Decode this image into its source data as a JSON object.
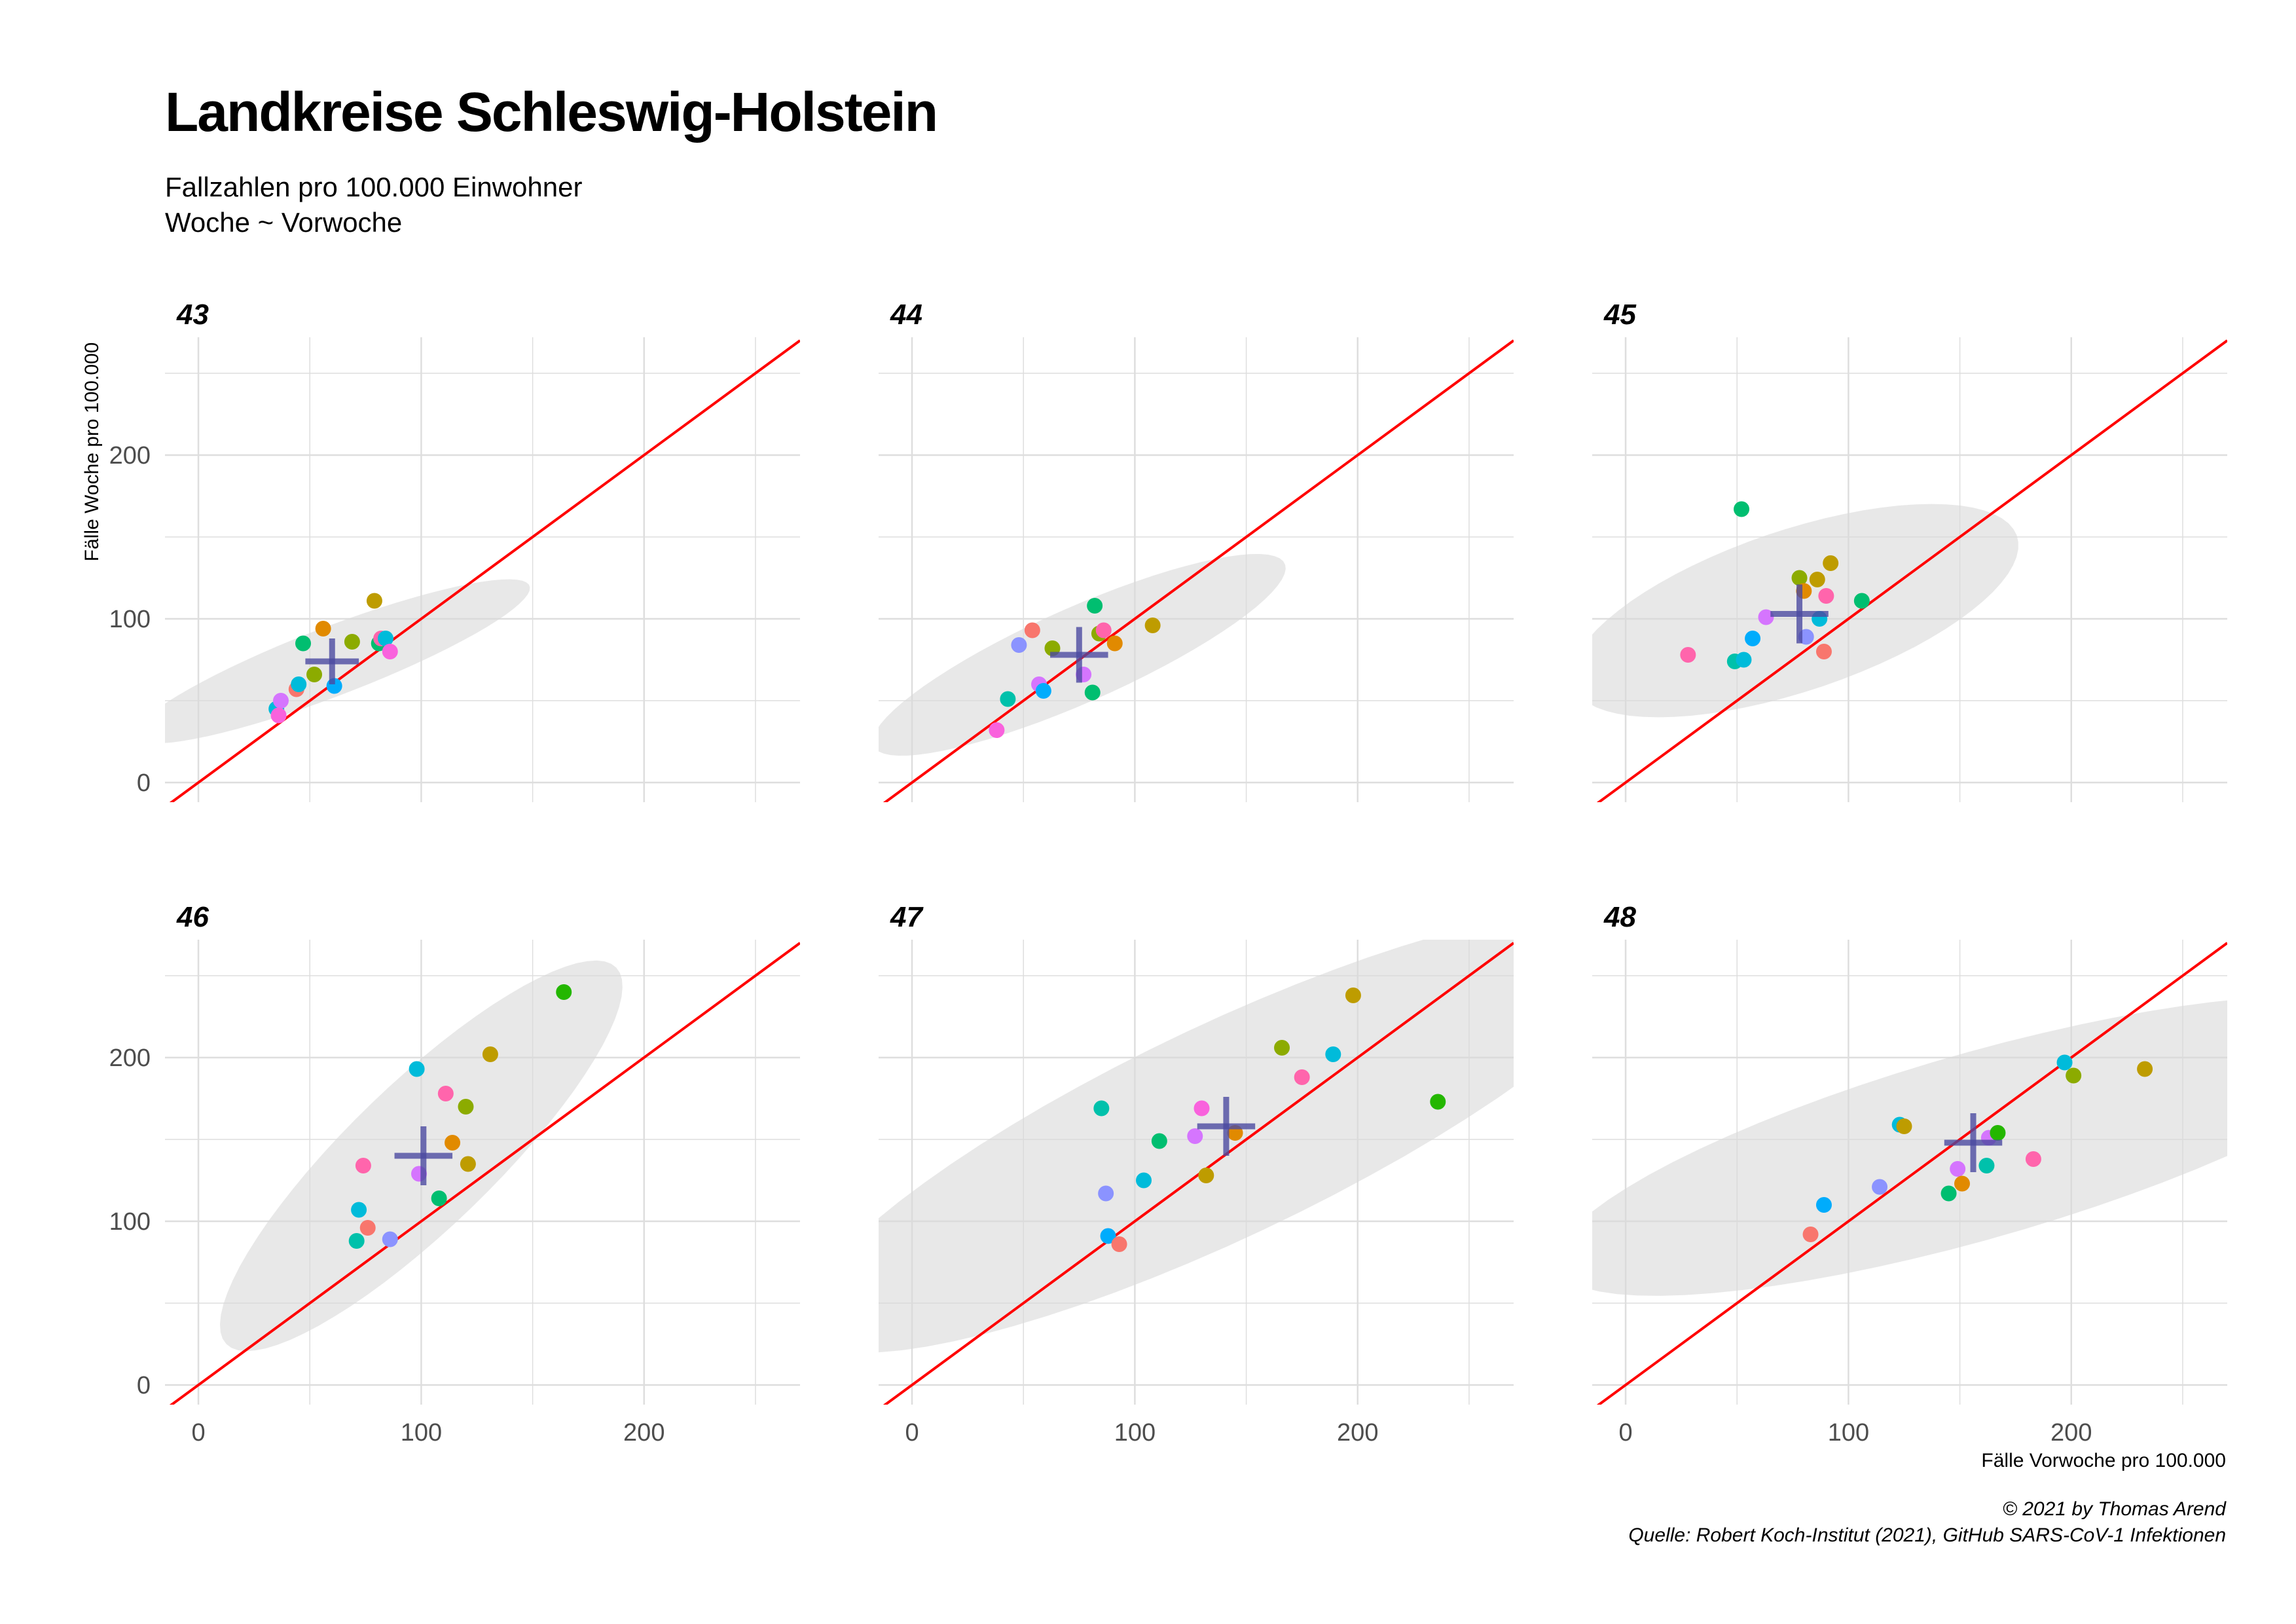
{
  "chart_data": {
    "type": "scatter",
    "title": "Landkreise Schleswig-Holstein",
    "subtitle": [
      "Fallzahlen pro 100.000 Einwohner",
      "Woche ~ Vorwoche"
    ],
    "xlabel": "Fälle Vorwoche pro 100.000",
    "ylabel": "Fälle Woche pro 100.000",
    "xlim": [
      -15,
      270
    ],
    "ylim": [
      -12,
      272
    ],
    "xticks": [
      0,
      100,
      200
    ],
    "yticks": [
      0,
      100,
      200
    ],
    "xtick_labels": [
      "0",
      "100",
      "200"
    ],
    "ytick_labels": [
      "0",
      "100",
      "200"
    ],
    "reference_line": {
      "type": "y = x",
      "color": "#ff0000"
    },
    "grid": true,
    "legend": "none",
    "caption": [
      "© 2021 by Thomas Arend",
      "Quelle: Robert Koch-Institut (2021), GitHub SARS-CoV-1 Infektionen"
    ],
    "point_colors": [
      "#F8766D",
      "#E18A00",
      "#BE9C00",
      "#8CAB00",
      "#24B700",
      "#00BE70",
      "#00C1AB",
      "#00BBDA",
      "#00ACFC",
      "#8B93FF",
      "#D575FE",
      "#F962DD",
      "#FF65AC"
    ],
    "mean_marker_color": "#4b4aa0",
    "ellipse_color": "#d9d9d9",
    "facets": [
      {
        "label": "43",
        "mean": {
          "x": 60,
          "y": 74,
          "sx": 12,
          "sy": 14
        },
        "ellipse": {
          "cx": 60,
          "cy": 74,
          "rx": 100,
          "ry": 20,
          "angle": 28
        },
        "points": [
          {
            "x": 35,
            "y": 45,
            "c": 7
          },
          {
            "x": 37,
            "y": 50,
            "c": 10
          },
          {
            "x": 36,
            "y": 41,
            "c": 11
          },
          {
            "x": 44,
            "y": 57,
            "c": 0
          },
          {
            "x": 45,
            "y": 60,
            "c": 7
          },
          {
            "x": 47,
            "y": 85,
            "c": 5
          },
          {
            "x": 52,
            "y": 66,
            "c": 3
          },
          {
            "x": 56,
            "y": 94,
            "c": 1
          },
          {
            "x": 61,
            "y": 59,
            "c": 8
          },
          {
            "x": 69,
            "y": 86,
            "c": 3
          },
          {
            "x": 79,
            "y": 111,
            "c": 2
          },
          {
            "x": 81,
            "y": 85,
            "c": 5
          },
          {
            "x": 82,
            "y": 88,
            "c": 12
          },
          {
            "x": 84,
            "y": 88,
            "c": 7
          },
          {
            "x": 86,
            "y": 80,
            "c": 11
          }
        ]
      },
      {
        "label": "44",
        "mean": {
          "x": 75,
          "y": 78,
          "sx": 13,
          "sy": 17
        },
        "ellipse": {
          "cx": 75,
          "cy": 78,
          "rx": 108,
          "ry": 27,
          "angle": 32
        },
        "points": [
          {
            "x": 38,
            "y": 32,
            "c": 11
          },
          {
            "x": 43,
            "y": 51,
            "c": 6
          },
          {
            "x": 48,
            "y": 84,
            "c": 9
          },
          {
            "x": 54,
            "y": 93,
            "c": 0
          },
          {
            "x": 57,
            "y": 60,
            "c": 10
          },
          {
            "x": 59,
            "y": 56,
            "c": 8
          },
          {
            "x": 63,
            "y": 82,
            "c": 3
          },
          {
            "x": 77,
            "y": 66,
            "c": 10
          },
          {
            "x": 81,
            "y": 55,
            "c": 5
          },
          {
            "x": 82,
            "y": 108,
            "c": 5
          },
          {
            "x": 84,
            "y": 91,
            "c": 3
          },
          {
            "x": 86,
            "y": 93,
            "c": 12
          },
          {
            "x": 91,
            "y": 85,
            "c": 1
          },
          {
            "x": 108,
            "y": 96,
            "c": 2
          }
        ]
      },
      {
        "label": "45",
        "mean": {
          "x": 78,
          "y": 103,
          "sx": 13,
          "sy": 18
        },
        "ellipse": {
          "cx": 76,
          "cy": 105,
          "rx": 110,
          "ry": 47,
          "angle": 27
        },
        "points": [
          {
            "x": 28,
            "y": 78,
            "c": 12
          },
          {
            "x": 49,
            "y": 74,
            "c": 6
          },
          {
            "x": 53,
            "y": 75,
            "c": 7
          },
          {
            "x": 52,
            "y": 167,
            "c": 5
          },
          {
            "x": 57,
            "y": 88,
            "c": 8
          },
          {
            "x": 63,
            "y": 101,
            "c": 10
          },
          {
            "x": 78,
            "y": 125,
            "c": 3
          },
          {
            "x": 80,
            "y": 117,
            "c": 1
          },
          {
            "x": 81,
            "y": 89,
            "c": 9
          },
          {
            "x": 86,
            "y": 124,
            "c": 2
          },
          {
            "x": 87,
            "y": 100,
            "c": 7
          },
          {
            "x": 89,
            "y": 80,
            "c": 0
          },
          {
            "x": 90,
            "y": 114,
            "c": 12
          },
          {
            "x": 92,
            "y": 134,
            "c": 2
          },
          {
            "x": 106,
            "y": 111,
            "c": 5
          }
        ]
      },
      {
        "label": "46",
        "mean": {
          "x": 101,
          "y": 140,
          "sx": 13,
          "sy": 18
        },
        "ellipse": {
          "cx": 100,
          "cy": 140,
          "rx": 145,
          "ry": 37,
          "angle": 54
        },
        "points": [
          {
            "x": 71,
            "y": 88,
            "c": 6
          },
          {
            "x": 72,
            "y": 107,
            "c": 7
          },
          {
            "x": 74,
            "y": 134,
            "c": 12
          },
          {
            "x": 76,
            "y": 96,
            "c": 0
          },
          {
            "x": 86,
            "y": 89,
            "c": 9
          },
          {
            "x": 98,
            "y": 193,
            "c": 7
          },
          {
            "x": 99,
            "y": 129,
            "c": 10
          },
          {
            "x": 108,
            "y": 114,
            "c": 5
          },
          {
            "x": 111,
            "y": 178,
            "c": 12
          },
          {
            "x": 114,
            "y": 148,
            "c": 1
          },
          {
            "x": 120,
            "y": 170,
            "c": 3
          },
          {
            "x": 121,
            "y": 135,
            "c": 2
          },
          {
            "x": 131,
            "y": 202,
            "c": 2
          },
          {
            "x": 164,
            "y": 240,
            "c": 4
          }
        ]
      },
      {
        "label": "47",
        "mean": {
          "x": 141,
          "y": 158,
          "sx": 13,
          "sy": 18
        },
        "ellipse": {
          "cx": 140,
          "cy": 155,
          "rx": 225,
          "ry": 60,
          "angle": 34
        },
        "points": [
          {
            "x": 85,
            "y": 169,
            "c": 6
          },
          {
            "x": 87,
            "y": 117,
            "c": 9
          },
          {
            "x": 88,
            "y": 91,
            "c": 8
          },
          {
            "x": 93,
            "y": 86,
            "c": 0
          },
          {
            "x": 104,
            "y": 125,
            "c": 7
          },
          {
            "x": 111,
            "y": 149,
            "c": 5
          },
          {
            "x": 127,
            "y": 152,
            "c": 10
          },
          {
            "x": 130,
            "y": 169,
            "c": 11
          },
          {
            "x": 132,
            "y": 128,
            "c": 2
          },
          {
            "x": 145,
            "y": 154,
            "c": 1
          },
          {
            "x": 166,
            "y": 206,
            "c": 3
          },
          {
            "x": 175,
            "y": 188,
            "c": 12
          },
          {
            "x": 189,
            "y": 202,
            "c": 7
          },
          {
            "x": 198,
            "y": 238,
            "c": 2
          },
          {
            "x": 236,
            "y": 173,
            "c": 4
          }
        ]
      },
      {
        "label": "48",
        "mean": {
          "x": 156,
          "y": 148,
          "sx": 13,
          "sy": 18
        },
        "ellipse": {
          "cx": 158,
          "cy": 146,
          "rx": 203,
          "ry": 55,
          "angle": 22
        },
        "points": [
          {
            "x": 83,
            "y": 92,
            "c": 0
          },
          {
            "x": 89,
            "y": 110,
            "c": 8
          },
          {
            "x": 114,
            "y": 121,
            "c": 9
          },
          {
            "x": 123,
            "y": 159,
            "c": 7
          },
          {
            "x": 125,
            "y": 158,
            "c": 2
          },
          {
            "x": 145,
            "y": 117,
            "c": 5
          },
          {
            "x": 149,
            "y": 132,
            "c": 10
          },
          {
            "x": 151,
            "y": 123,
            "c": 1
          },
          {
            "x": 162,
            "y": 134,
            "c": 6
          },
          {
            "x": 163,
            "y": 151,
            "c": 10
          },
          {
            "x": 167,
            "y": 154,
            "c": 4
          },
          {
            "x": 183,
            "y": 138,
            "c": 12
          },
          {
            "x": 197,
            "y": 197,
            "c": 7
          },
          {
            "x": 201,
            "y": 189,
            "c": 3
          },
          {
            "x": 233,
            "y": 193,
            "c": 2
          }
        ]
      }
    ]
  }
}
